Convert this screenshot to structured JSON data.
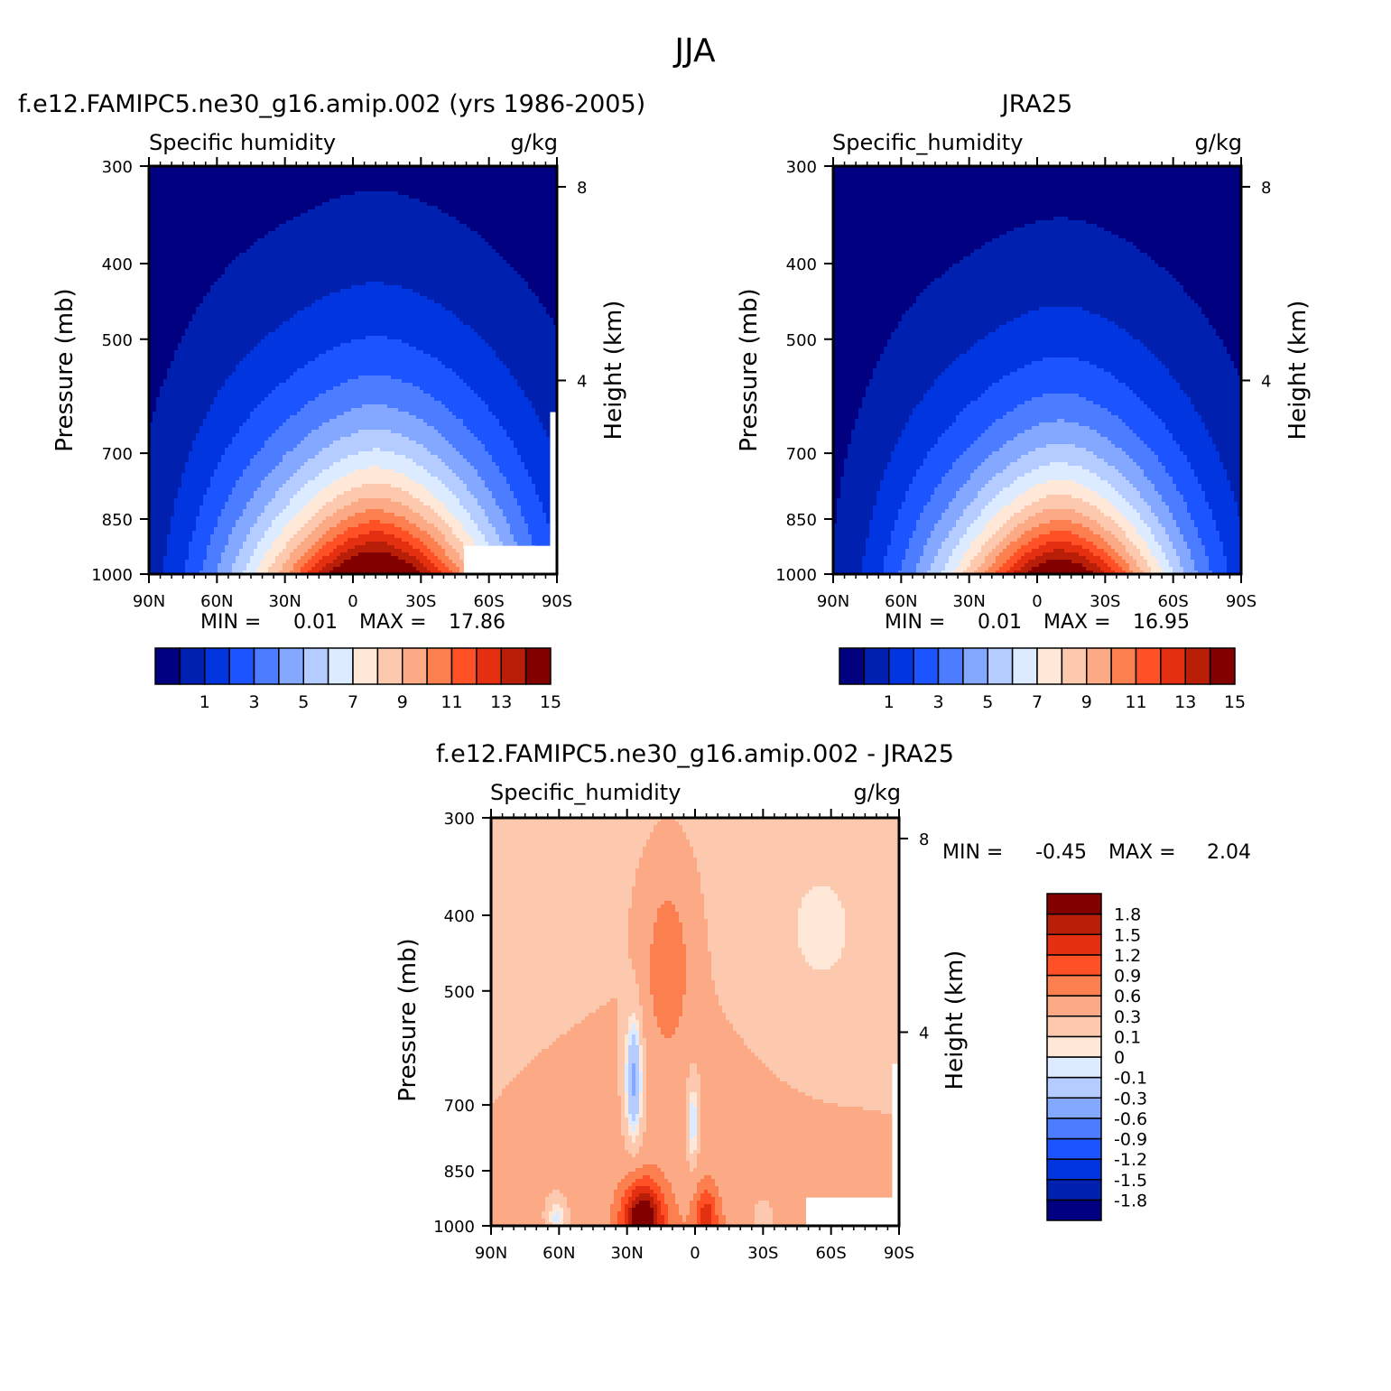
{
  "figure_title": "JJA",
  "colors": {
    "absolute": [
      "#000080",
      "#0020b0",
      "#0035e0",
      "#1c55ff",
      "#4c7cff",
      "#84a8ff",
      "#b4ccff",
      "#dcebff",
      "#ffe8d8",
      "#fcc9ae",
      "#fca985",
      "#fc7f50",
      "#ff5026",
      "#e43010",
      "#b81e08",
      "#820000"
    ],
    "difference": [
      "#000080",
      "#0020b0",
      "#0035e0",
      "#1c55ff",
      "#4c7cff",
      "#84a8ff",
      "#b4ccff",
      "#dcebff",
      "#ffe8d8",
      "#fcc9ae",
      "#fca985",
      "#fc7f50",
      "#ff5026",
      "#e43010",
      "#b81e08",
      "#820000"
    ]
  },
  "chart_data": [
    {
      "type": "heatmap",
      "title": "f.e12.FAMIPC5.ne30_g16.amip.002 (yrs 1986-2005)",
      "left_label": "Specific humidity",
      "units": "g/kg",
      "ylabel": "Pressure (mb)",
      "y2label": "Height (km)",
      "x_ticks": [
        "90N",
        "60N",
        "30N",
        "0",
        "30S",
        "60S",
        "90S"
      ],
      "y_ticks": [
        "300",
        "400",
        "500",
        "700",
        "850",
        "1000"
      ],
      "y2_ticks": [
        "8",
        "4"
      ],
      "min_label": "MIN =",
      "min": "0.01",
      "max_label": "MAX =",
      "max": "17.86",
      "levels": [
        "1",
        "3",
        "5",
        "7",
        "9",
        "11",
        "13",
        "15"
      ],
      "peak": 17.86,
      "peak_lat": -10,
      "core_halfwidth": 58,
      "decay_height": 2.75,
      "peak_pressure": 1000,
      "missing_south": true
    },
    {
      "type": "heatmap",
      "title": "JRA25",
      "left_label": "Specific_humidity",
      "units": "g/kg",
      "ylabel": "Pressure (mb)",
      "y2label": "Height (km)",
      "x_ticks": [
        "90N",
        "60N",
        "30N",
        "0",
        "30S",
        "60S",
        "90S"
      ],
      "y_ticks": [
        "300",
        "400",
        "500",
        "700",
        "850",
        "1000"
      ],
      "y2_ticks": [
        "8",
        "4"
      ],
      "min_label": "MIN =",
      "min": "0.01",
      "max_label": "MAX =",
      "max": "16.95",
      "levels": [
        "1",
        "3",
        "5",
        "7",
        "9",
        "11",
        "13",
        "15"
      ],
      "peak": 16.95,
      "peak_lat": -10,
      "core_halfwidth": 54,
      "decay_height": 2.6,
      "peak_pressure": 1000,
      "missing_south": false
    },
    {
      "type": "heatmap",
      "title": "f.e12.FAMIPC5.ne30_g16.amip.002 - JRA25",
      "left_label": "Specific_humidity",
      "units": "g/kg",
      "ylabel": "Pressure (mb)",
      "y2label": "Height (km)",
      "x_ticks": [
        "90N",
        "60N",
        "30N",
        "0",
        "30S",
        "60S",
        "90S"
      ],
      "y_ticks": [
        "300",
        "400",
        "500",
        "700",
        "850",
        "1000"
      ],
      "y2_ticks": [
        "8",
        "4"
      ],
      "min_label": "MIN =",
      "min": "-0.45",
      "max_label": "MAX =",
      "max": "2.04",
      "levels": [
        "-1.8",
        "-1.5",
        "-1.2",
        "-0.9",
        "-0.6",
        "-0.3",
        "-0.1",
        "0",
        "0.1",
        "0.3",
        "0.6",
        "0.9",
        "1.2",
        "1.5",
        "1.8"
      ],
      "missing_south": true
    }
  ]
}
